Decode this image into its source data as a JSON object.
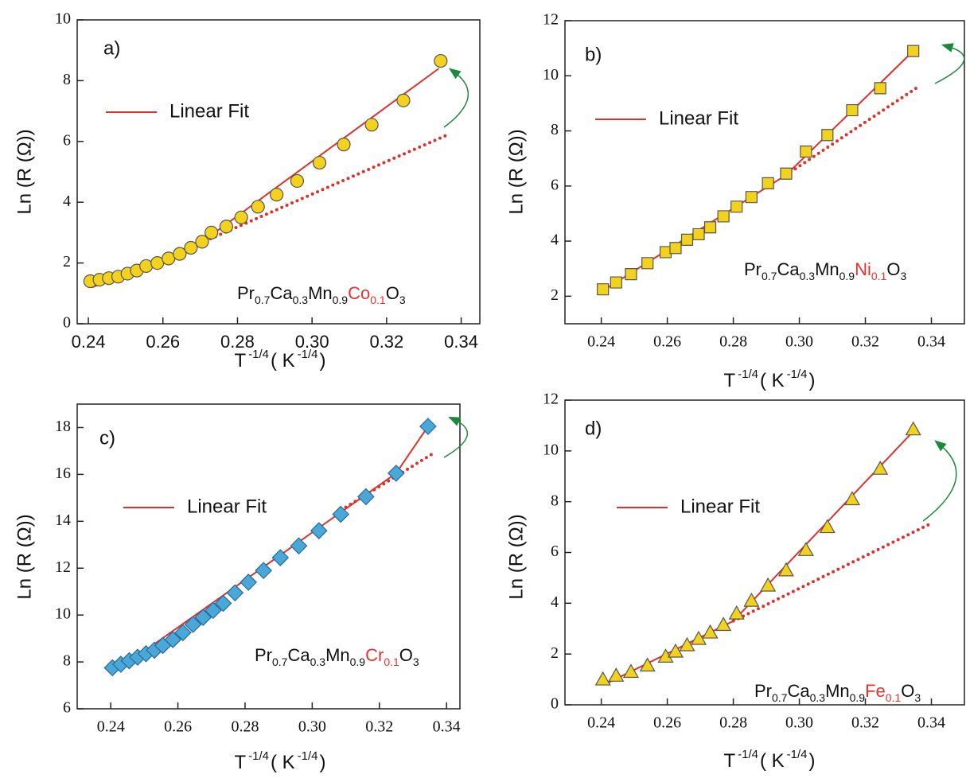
{
  "chart_data": [
    {
      "type": "scatter",
      "panel_label": "a)",
      "ylabel": "Ln (R (Ω))",
      "xlabel": [
        {
          "text": "T"
        },
        {
          "text": "-1/4",
          "sup": true
        },
        {
          "text": "( K"
        },
        {
          "text": "-1/4",
          "sup": true
        },
        {
          "text": ")"
        }
      ],
      "formula": [
        {
          "text": "Pr"
        },
        {
          "text": "0.7",
          "sub": true
        },
        {
          "text": "Ca"
        },
        {
          "text": "0.3",
          "sub": true
        },
        {
          "text": "Mn"
        },
        {
          "text": "0.9",
          "sub": true
        },
        {
          "text": "Co",
          "color": "#e8322c"
        },
        {
          "text": "0.1",
          "sub": true,
          "color": "#e8322c"
        },
        {
          "text": "O"
        },
        {
          "text": "3",
          "sub": true
        }
      ],
      "xlim": [
        0.237,
        0.345
      ],
      "ylim": [
        0,
        10
      ],
      "xticks": [
        0.24,
        0.26,
        0.28,
        {
          "value": 0.3,
          "label": "0.30"
        },
        0.32,
        0.34
      ],
      "yticks": [
        0,
        2,
        4,
        6,
        8,
        10
      ],
      "marker": "circle",
      "marker_color": "#f2d21c",
      "x": [
        0.2405,
        0.243,
        0.2455,
        0.248,
        0.2505,
        0.253,
        0.2555,
        0.2585,
        0.2615,
        0.2645,
        0.2675,
        0.2705,
        0.273,
        0.277,
        0.281,
        0.2855,
        0.2905,
        0.296,
        0.302,
        0.3085,
        0.316,
        0.3245,
        0.3345
      ],
      "values": [
        1.4,
        1.45,
        1.5,
        1.55,
        1.65,
        1.75,
        1.9,
        2.0,
        2.15,
        2.3,
        2.5,
        2.7,
        3.0,
        3.2,
        3.5,
        3.85,
        4.25,
        4.7,
        5.3,
        5.9,
        6.55,
        7.35,
        8.65
      ],
      "series": [
        {
          "name": "Linear Fit",
          "color": "#e0302a",
          "style": "solid",
          "x": [
            0.241,
            0.27,
            0.334
          ],
          "values": [
            1.2,
            2.65,
            8.4
          ]
        },
        {
          "color": "#e0302a",
          "style": "dotted",
          "x": [
            0.27,
            0.336
          ],
          "values": [
            2.65,
            6.2
          ]
        }
      ]
    },
    {
      "type": "scatter",
      "panel_label": "b)",
      "ylabel": "Ln (R (Ω))",
      "xlabel": [
        {
          "text": "T"
        },
        {
          "text": "-1/4",
          "sup": true
        },
        {
          "text": "( K"
        },
        {
          "text": "-1/4",
          "sup": true
        },
        {
          "text": ")"
        }
      ],
      "formula": [
        {
          "text": "Pr"
        },
        {
          "text": "0.7",
          "sub": true
        },
        {
          "text": "Ca"
        },
        {
          "text": "0.3",
          "sub": true
        },
        {
          "text": "Mn"
        },
        {
          "text": "0.9",
          "sub": true
        },
        {
          "text": "Ni",
          "color": "#e8322c"
        },
        {
          "text": "0.1",
          "sub": true,
          "color": "#e8322c"
        },
        {
          "text": "O"
        },
        {
          "text": "3",
          "sub": true
        }
      ],
      "xlim": [
        0.229,
        0.35
      ],
      "ylim": [
        1,
        12
      ],
      "xticks": [
        0.24,
        0.26,
        0.28,
        {
          "value": 0.3,
          "label": "0.30"
        },
        0.32,
        0.34
      ],
      "yticks": [
        2,
        4,
        6,
        8,
        10,
        12
      ],
      "marker": "square",
      "marker_color": "#f2d21c",
      "x": [
        0.2405,
        0.2445,
        0.249,
        0.254,
        0.2595,
        0.2625,
        0.266,
        0.2695,
        0.273,
        0.277,
        0.281,
        0.2855,
        0.2905,
        0.296,
        0.302,
        0.3085,
        0.316,
        0.3245,
        0.3345
      ],
      "values": [
        2.25,
        2.5,
        2.8,
        3.2,
        3.6,
        3.75,
        4.05,
        4.25,
        4.5,
        4.9,
        5.25,
        5.6,
        6.1,
        6.45,
        7.25,
        7.85,
        8.75,
        9.55,
        10.9
      ],
      "series": [
        {
          "name": "Linear Fit",
          "color": "#e0302a",
          "style": "solid",
          "x": [
            0.2405,
            0.296,
            0.3345
          ],
          "values": [
            2.2,
            6.4,
            10.9
          ]
        },
        {
          "color": "#e0302a",
          "style": "dotted",
          "x": [
            0.296,
            0.336
          ],
          "values": [
            6.4,
            9.6
          ]
        }
      ]
    },
    {
      "type": "scatter",
      "panel_label": "c)",
      "ylabel": "Ln (R (Ω))",
      "xlabel": [
        {
          "text": "T"
        },
        {
          "text": "-1/4",
          "sup": true
        },
        {
          "text": "( K"
        },
        {
          "text": "-1/4",
          "sup": true
        },
        {
          "text": ")"
        }
      ],
      "formula": [
        {
          "text": "Pr"
        },
        {
          "text": "0.7",
          "sub": true
        },
        {
          "text": "Ca"
        },
        {
          "text": "0.3",
          "sub": true
        },
        {
          "text": "Mn"
        },
        {
          "text": "0.9",
          "sub": true
        },
        {
          "text": "Cr",
          "color": "#e8322c"
        },
        {
          "text": "0.1",
          "sub": true,
          "color": "#e8322c"
        },
        {
          "text": "O"
        },
        {
          "text": "3",
          "sub": true
        }
      ],
      "xlim": [
        0.23,
        0.344
      ],
      "ylim": [
        6,
        19
      ],
      "xticks": [
        0.24,
        0.26,
        0.28,
        {
          "value": 0.3,
          "label": "0.30"
        },
        0.32,
        0.34
      ],
      "yticks": [
        6,
        8,
        10,
        12,
        14,
        16,
        18
      ],
      "marker": "diamond",
      "marker_color": "#4aa8d8",
      "x": [
        0.2405,
        0.243,
        0.2455,
        0.248,
        0.2505,
        0.253,
        0.2555,
        0.2585,
        0.2615,
        0.2645,
        0.2675,
        0.2705,
        0.2735,
        0.277,
        0.281,
        0.2855,
        0.2905,
        0.296,
        0.302,
        0.3085,
        0.316,
        0.325,
        0.3345
      ],
      "values": [
        7.75,
        7.9,
        8.05,
        8.2,
        8.35,
        8.5,
        8.7,
        8.95,
        9.25,
        9.6,
        9.9,
        10.2,
        10.5,
        10.95,
        11.4,
        11.9,
        12.45,
        12.95,
        13.6,
        14.3,
        15.05,
        16.05,
        18.05
      ],
      "series": [
        {
          "name": "Linear Fit",
          "color": "#e0302a",
          "style": "solid",
          "x": [
            0.2405,
            0.325,
            0.3345
          ],
          "values": [
            7.5,
            16.05,
            18.05
          ]
        },
        {
          "color": "#e0302a",
          "style": "dotted",
          "x": [
            0.31,
            0.3355
          ],
          "values": [
            14.6,
            16.85
          ]
        }
      ]
    },
    {
      "type": "scatter",
      "panel_label": "d)",
      "ylabel": "Ln (R (Ω))",
      "xlabel": [
        {
          "text": "T"
        },
        {
          "text": "-1/4",
          "sup": true
        },
        {
          "text": "( K"
        },
        {
          "text": "-1/4",
          "sup": true
        },
        {
          "text": ")"
        }
      ],
      "formula": [
        {
          "text": "Pr"
        },
        {
          "text": "0.7",
          "sub": true
        },
        {
          "text": "Ca"
        },
        {
          "text": "0.3",
          "sub": true
        },
        {
          "text": "Mn"
        },
        {
          "text": "0.9",
          "sub": true
        },
        {
          "text": "Fe",
          "color": "#e8322c"
        },
        {
          "text": "0.1",
          "sub": true,
          "color": "#e8322c"
        },
        {
          "text": "O"
        },
        {
          "text": "3",
          "sub": true
        }
      ],
      "xlim": [
        0.229,
        0.35
      ],
      "ylim": [
        0,
        12
      ],
      "xticks": [
        0.24,
        0.26,
        0.28,
        {
          "value": 0.3,
          "label": "0.30"
        },
        0.32,
        0.34
      ],
      "yticks": [
        0,
        2,
        4,
        6,
        8,
        10,
        12
      ],
      "marker": "triangle",
      "marker_color": "#f2d21c",
      "x": [
        0.2405,
        0.2445,
        0.249,
        0.254,
        0.2595,
        0.2625,
        0.266,
        0.2695,
        0.273,
        0.277,
        0.281,
        0.2855,
        0.2905,
        0.296,
        0.302,
        0.3085,
        0.316,
        0.3245,
        0.3345
      ],
      "values": [
        1.0,
        1.15,
        1.3,
        1.55,
        1.9,
        2.1,
        2.35,
        2.6,
        2.85,
        3.15,
        3.6,
        4.1,
        4.7,
        5.3,
        6.1,
        7.0,
        8.1,
        9.3,
        10.85
      ],
      "series": [
        {
          "name": "Linear Fit",
          "color": "#e0302a",
          "style": "solid",
          "x": [
            0.241,
            0.28,
            0.334
          ],
          "values": [
            0.8,
            3.3,
            10.7
          ]
        },
        {
          "color": "#e0302a",
          "style": "dotted",
          "x": [
            0.28,
            0.34
          ],
          "values": [
            3.3,
            7.15
          ]
        }
      ]
    }
  ]
}
